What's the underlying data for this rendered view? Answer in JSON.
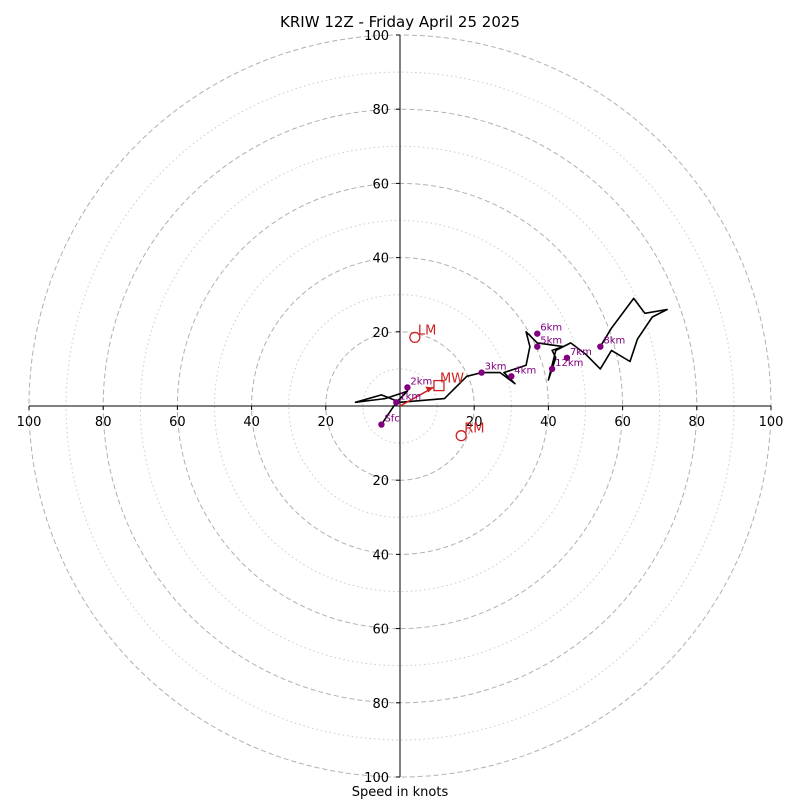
{
  "chart_data": {
    "type": "hodograph",
    "title": "KRIW 12Z - Friday April 25 2025",
    "xlabel": "Speed in knots",
    "units": "knots",
    "range": [
      -100,
      100
    ],
    "rings_major": [
      20,
      40,
      60,
      80,
      100
    ],
    "rings_minor": [
      10,
      30,
      50,
      70,
      90
    ],
    "tick_labels": [
      "100",
      "80",
      "60",
      "40",
      "20",
      "20",
      "40",
      "60",
      "80",
      "100"
    ],
    "tick_values": [
      -100,
      -80,
      -60,
      -40,
      -20,
      20,
      40,
      60,
      80,
      100
    ],
    "y_tick_labels_upper": [
      "20",
      "40",
      "60",
      "80",
      "100"
    ],
    "y_tick_labels_lower": [
      "20",
      "40",
      "60",
      "80",
      "100"
    ],
    "colors": {
      "trace": "#000000",
      "heights": "#800080",
      "motion": "#cc2222",
      "grid_major": "#b0b0b0",
      "grid_minor": "#cccccc"
    },
    "trace": [
      [
        -5,
        -5
      ],
      [
        -1,
        1
      ],
      [
        2,
        4
      ],
      [
        -4,
        2
      ],
      [
        -12,
        1
      ],
      [
        -5,
        3
      ],
      [
        0,
        1
      ],
      [
        12,
        2
      ],
      [
        18,
        8
      ],
      [
        22,
        9
      ],
      [
        27,
        9
      ],
      [
        31,
        6
      ],
      [
        28,
        9
      ],
      [
        34,
        11
      ],
      [
        35,
        16
      ],
      [
        34,
        20
      ],
      [
        37,
        17
      ],
      [
        44,
        16
      ],
      [
        41,
        15
      ],
      [
        42,
        13
      ],
      [
        41,
        10
      ],
      [
        40,
        7
      ],
      [
        42,
        15
      ],
      [
        46,
        17
      ],
      [
        50,
        14
      ],
      [
        54,
        10
      ],
      [
        57,
        15
      ],
      [
        62,
        12
      ],
      [
        64,
        18
      ],
      [
        68,
        24
      ],
      [
        72,
        26
      ],
      [
        66,
        25
      ],
      [
        63,
        29
      ],
      [
        57,
        21
      ],
      [
        54,
        16
      ]
    ],
    "heights": [
      {
        "label": "Sfc",
        "x": -5,
        "y": -5
      },
      {
        "label": "1km",
        "x": -1,
        "y": 1
      },
      {
        "label": "2km",
        "x": 2,
        "y": 5
      },
      {
        "label": "3km",
        "x": 22,
        "y": 9
      },
      {
        "label": "4km",
        "x": 30,
        "y": 8
      },
      {
        "label": "5km",
        "x": 37,
        "y": 16
      },
      {
        "label": "6km",
        "x": 37,
        "y": 19.5
      },
      {
        "label": "7km",
        "x": 45,
        "y": 13
      },
      {
        "label": "8km",
        "x": 54,
        "y": 16
      },
      {
        "label": "12km",
        "x": 41,
        "y": 10
      }
    ],
    "storm_motion": {
      "LM": {
        "label": "LM",
        "x": 4,
        "y": 18.5
      },
      "RM": {
        "label": "RM",
        "x": 16.5,
        "y": -8
      },
      "MW": {
        "label": "MW",
        "x": 10.5,
        "y": 5.5
      }
    },
    "shear_vector": {
      "from": [
        0,
        0
      ],
      "to": [
        9,
        5
      ]
    }
  }
}
